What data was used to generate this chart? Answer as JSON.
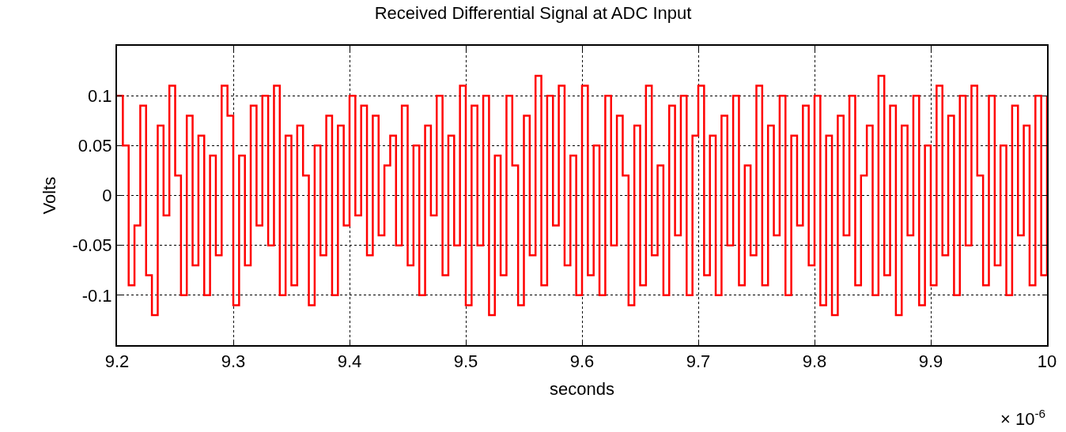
{
  "chart_data": {
    "type": "step",
    "title": "Received Differential Signal at ADC Input",
    "xlabel": "seconds",
    "ylabel": "Volts",
    "annotations": [
      "× 10$^{-6}$"
    ],
    "x": [
      9.2,
      9.205,
      9.21,
      9.215,
      9.22,
      9.225,
      9.23,
      9.235,
      9.24,
      9.245,
      9.25,
      9.255,
      9.26,
      9.265,
      9.27,
      9.275,
      9.28,
      9.285,
      9.29,
      9.295,
      9.3,
      9.305,
      9.31,
      9.315,
      9.32,
      9.325,
      9.33,
      9.335,
      9.34,
      9.345,
      9.35,
      9.355,
      9.36,
      9.365,
      9.37,
      9.375,
      9.38,
      9.385,
      9.39,
      9.395,
      9.4,
      9.405,
      9.41,
      9.415,
      9.42,
      9.425,
      9.43,
      9.435,
      9.44,
      9.445,
      9.45,
      9.455,
      9.46,
      9.465,
      9.47,
      9.475,
      9.48,
      9.485,
      9.49,
      9.495,
      9.5,
      9.505,
      9.51,
      9.515,
      9.52,
      9.525,
      9.53,
      9.535,
      9.54,
      9.545,
      9.55,
      9.555,
      9.56,
      9.565,
      9.57,
      9.575,
      9.58,
      9.585,
      9.59,
      9.595,
      9.6,
      9.605,
      9.61,
      9.615,
      9.62,
      9.625,
      9.63,
      9.635,
      9.64,
      9.645,
      9.65,
      9.655,
      9.66,
      9.665,
      9.67,
      9.675,
      9.68,
      9.685,
      9.69,
      9.695,
      9.7,
      9.705,
      9.71,
      9.715,
      9.72,
      9.725,
      9.73,
      9.735,
      9.74,
      9.745,
      9.75,
      9.755,
      9.76,
      9.765,
      9.77,
      9.775,
      9.78,
      9.785,
      9.79,
      9.795,
      9.8,
      9.805,
      9.81,
      9.815,
      9.82,
      9.825,
      9.83,
      9.835,
      9.84,
      9.845,
      9.85,
      9.855,
      9.86,
      9.865,
      9.87,
      9.875,
      9.88,
      9.885,
      9.89,
      9.895,
      9.9,
      9.905,
      9.91,
      9.915,
      9.92,
      9.925,
      9.93,
      9.935,
      9.94,
      9.945,
      9.95,
      9.955,
      9.96,
      9.965,
      9.97,
      9.975,
      9.98,
      9.985,
      9.99,
      9.995,
      10.0
    ],
    "series": [
      {
        "color": "#ff0000",
        "values": [
          0.1,
          0.05,
          -0.09,
          -0.03,
          0.09,
          -0.08,
          -0.12,
          0.07,
          -0.02,
          0.11,
          0.02,
          -0.1,
          0.08,
          -0.07,
          0.06,
          -0.1,
          0.04,
          -0.06,
          0.11,
          0.08,
          -0.11,
          0.04,
          -0.07,
          0.09,
          -0.03,
          0.1,
          -0.05,
          0.11,
          -0.1,
          0.06,
          -0.09,
          0.07,
          0.02,
          -0.11,
          0.05,
          -0.06,
          0.08,
          -0.1,
          0.07,
          -0.03,
          0.1,
          -0.02,
          0.09,
          -0.06,
          0.08,
          -0.04,
          0.03,
          0.06,
          -0.05,
          0.09,
          -0.07,
          0.05,
          -0.1,
          0.07,
          -0.02,
          0.1,
          -0.08,
          0.06,
          -0.05,
          0.11,
          -0.11,
          0.09,
          -0.05,
          0.1,
          -0.12,
          0.04,
          -0.08,
          0.1,
          0.03,
          -0.11,
          0.08,
          -0.06,
          0.12,
          -0.09,
          0.1,
          -0.03,
          0.11,
          -0.07,
          0.04,
          -0.1,
          0.11,
          -0.08,
          0.05,
          -0.1,
          0.1,
          -0.05,
          0.08,
          0.02,
          -0.11,
          0.07,
          -0.09,
          0.11,
          -0.06,
          0.03,
          -0.1,
          0.09,
          -0.04,
          0.1,
          -0.1,
          0.06,
          0.11,
          -0.08,
          0.06,
          -0.1,
          0.08,
          -0.05,
          0.1,
          -0.09,
          0.03,
          -0.06,
          0.11,
          -0.09,
          0.07,
          -0.04,
          0.1,
          -0.1,
          0.06,
          -0.03,
          0.09,
          -0.07,
          0.1,
          -0.11,
          0.06,
          -0.12,
          0.08,
          -0.04,
          0.1,
          -0.09,
          0.02,
          0.07,
          -0.1,
          0.12,
          -0.08,
          0.09,
          -0.12,
          0.07,
          -0.04,
          0.1,
          -0.11,
          0.05,
          -0.09,
          0.11,
          -0.06,
          0.08,
          -0.1,
          0.1,
          -0.05,
          0.11,
          0.02,
          -0.09,
          0.1,
          -0.07,
          0.05,
          -0.1,
          0.09,
          -0.04,
          0.07,
          -0.09,
          0.1,
          -0.08,
          0.1
        ]
      }
    ],
    "xlim": [
      9.2,
      10
    ],
    "xticks": [
      9.2,
      9.3,
      9.4,
      9.5,
      9.6,
      9.7,
      9.8,
      9.9,
      10
    ],
    "ylim": [
      -0.15,
      0.15
    ],
    "yticks": [
      -0.1,
      -0.05,
      0,
      0.05,
      0.1
    ],
    "grid": true
  }
}
